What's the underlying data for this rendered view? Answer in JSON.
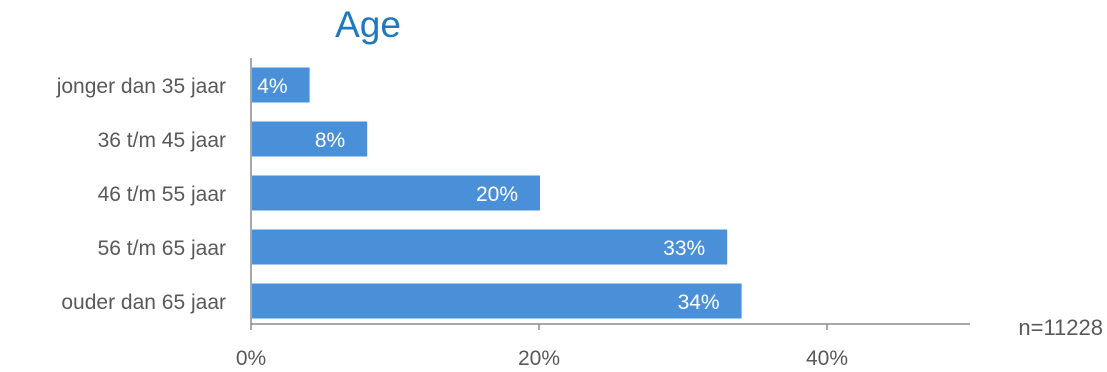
{
  "chart_data": {
    "type": "bar",
    "orientation": "horizontal",
    "title": "Age",
    "categories": [
      "jonger dan 35 jaar",
      "36 t/m 45 jaar",
      "46 t/m 55 jaar",
      "56 t/m 65 jaar",
      "ouder dan 65 jaar"
    ],
    "values": [
      4,
      8,
      20,
      33,
      34
    ],
    "value_labels": [
      "4%",
      "8%",
      "20%",
      "33%",
      "34%"
    ],
    "x_ticks": [
      0,
      20,
      40
    ],
    "x_tick_labels": [
      "0%",
      "20%",
      "40%"
    ],
    "xlim": [
      0,
      50
    ],
    "grid": false,
    "annotation": "n=11228",
    "colors": {
      "bar": "#4A90D9",
      "title": "#1F77C0",
      "axis": "#8C8C8C",
      "label_text": "#595959",
      "value_text": "#FFFFFF"
    }
  }
}
